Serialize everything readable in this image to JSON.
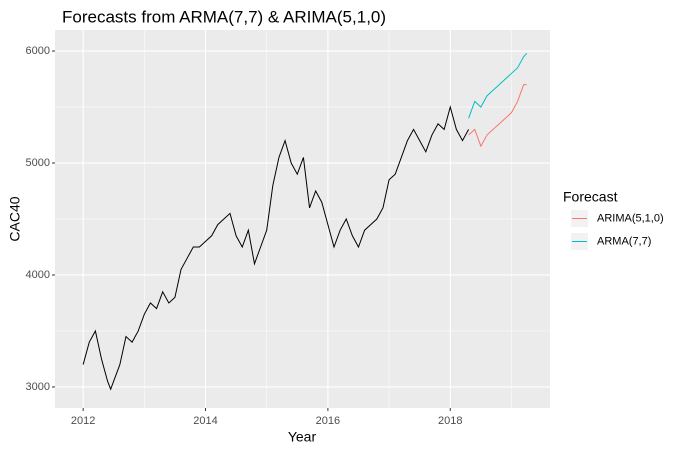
{
  "chart_data": {
    "type": "line",
    "title": "Forecasts from ARMA(7,7) & ARIMA(5,1,0)",
    "x_label": "Year",
    "y_label": "CAC40",
    "legend_title": "Forecast",
    "legend_position": "right",
    "grid": true,
    "xlim": [
      2011.54,
      2019.63
    ],
    "ylim": [
      2812,
      6188
    ],
    "xticks": [
      2012,
      2014,
      2016,
      2018
    ],
    "yticks": [
      3000,
      4000,
      5000,
      6000
    ],
    "x_minor_ticks": [
      2013,
      2015,
      2017,
      2019
    ],
    "y_minor_ticks": [
      3500,
      4500,
      5500
    ],
    "series": [
      {
        "color": "#000000",
        "x": [
          2012.0,
          2012.1,
          2012.2,
          2012.3,
          2012.4,
          2012.45,
          2012.6,
          2012.7,
          2012.8,
          2012.9,
          2013.0,
          2013.1,
          2013.2,
          2013.3,
          2013.4,
          2013.5,
          2013.6,
          2013.7,
          2013.8,
          2013.9,
          2014.0,
          2014.1,
          2014.2,
          2014.3,
          2014.4,
          2014.5,
          2014.6,
          2014.7,
          2014.8,
          2014.9,
          2015.0,
          2015.1,
          2015.2,
          2015.3,
          2015.4,
          2015.5,
          2015.6,
          2015.7,
          2015.8,
          2015.9,
          2016.0,
          2016.1,
          2016.2,
          2016.3,
          2016.4,
          2016.5,
          2016.6,
          2016.7,
          2016.8,
          2016.9,
          2017.0,
          2017.1,
          2017.2,
          2017.3,
          2017.4,
          2017.5,
          2017.6,
          2017.7,
          2017.8,
          2017.9,
          2018.0,
          2018.1,
          2018.2,
          2018.3
        ],
        "values": [
          3200,
          3400,
          3500,
          3250,
          3050,
          2980,
          3200,
          3450,
          3400,
          3500,
          3650,
          3750,
          3700,
          3850,
          3750,
          3800,
          4050,
          4150,
          4250,
          4250,
          4300,
          4350,
          4450,
          4500,
          4550,
          4350,
          4250,
          4400,
          4100,
          4250,
          4400,
          4800,
          5050,
          5200,
          5000,
          4900,
          5050,
          4600,
          4750,
          4650,
          4450,
          4250,
          4400,
          4500,
          4350,
          4250,
          4400,
          4450,
          4500,
          4600,
          4850,
          4900,
          5050,
          5200,
          5300,
          5200,
          5100,
          5250,
          5350,
          5300,
          5500,
          5300,
          5200,
          5300
        ]
      },
      {
        "name": "ARIMA(5,1,0)",
        "color": "#F8766D",
        "x": [
          2018.3,
          2018.4,
          2018.5,
          2018.6,
          2018.7,
          2018.8,
          2018.9,
          2019.0,
          2019.1,
          2019.2,
          2019.25
        ],
        "values": [
          5250,
          5300,
          5150,
          5250,
          5300,
          5350,
          5400,
          5450,
          5550,
          5700,
          5700
        ]
      },
      {
        "name": "ARMA(7,7)",
        "color": "#00BFC4",
        "x": [
          2018.3,
          2018.4,
          2018.5,
          2018.6,
          2018.7,
          2018.8,
          2018.9,
          2019.0,
          2019.1,
          2019.2,
          2019.25
        ],
        "values": [
          5400,
          5550,
          5500,
          5600,
          5650,
          5700,
          5750,
          5800,
          5850,
          5950,
          5980
        ]
      }
    ]
  }
}
